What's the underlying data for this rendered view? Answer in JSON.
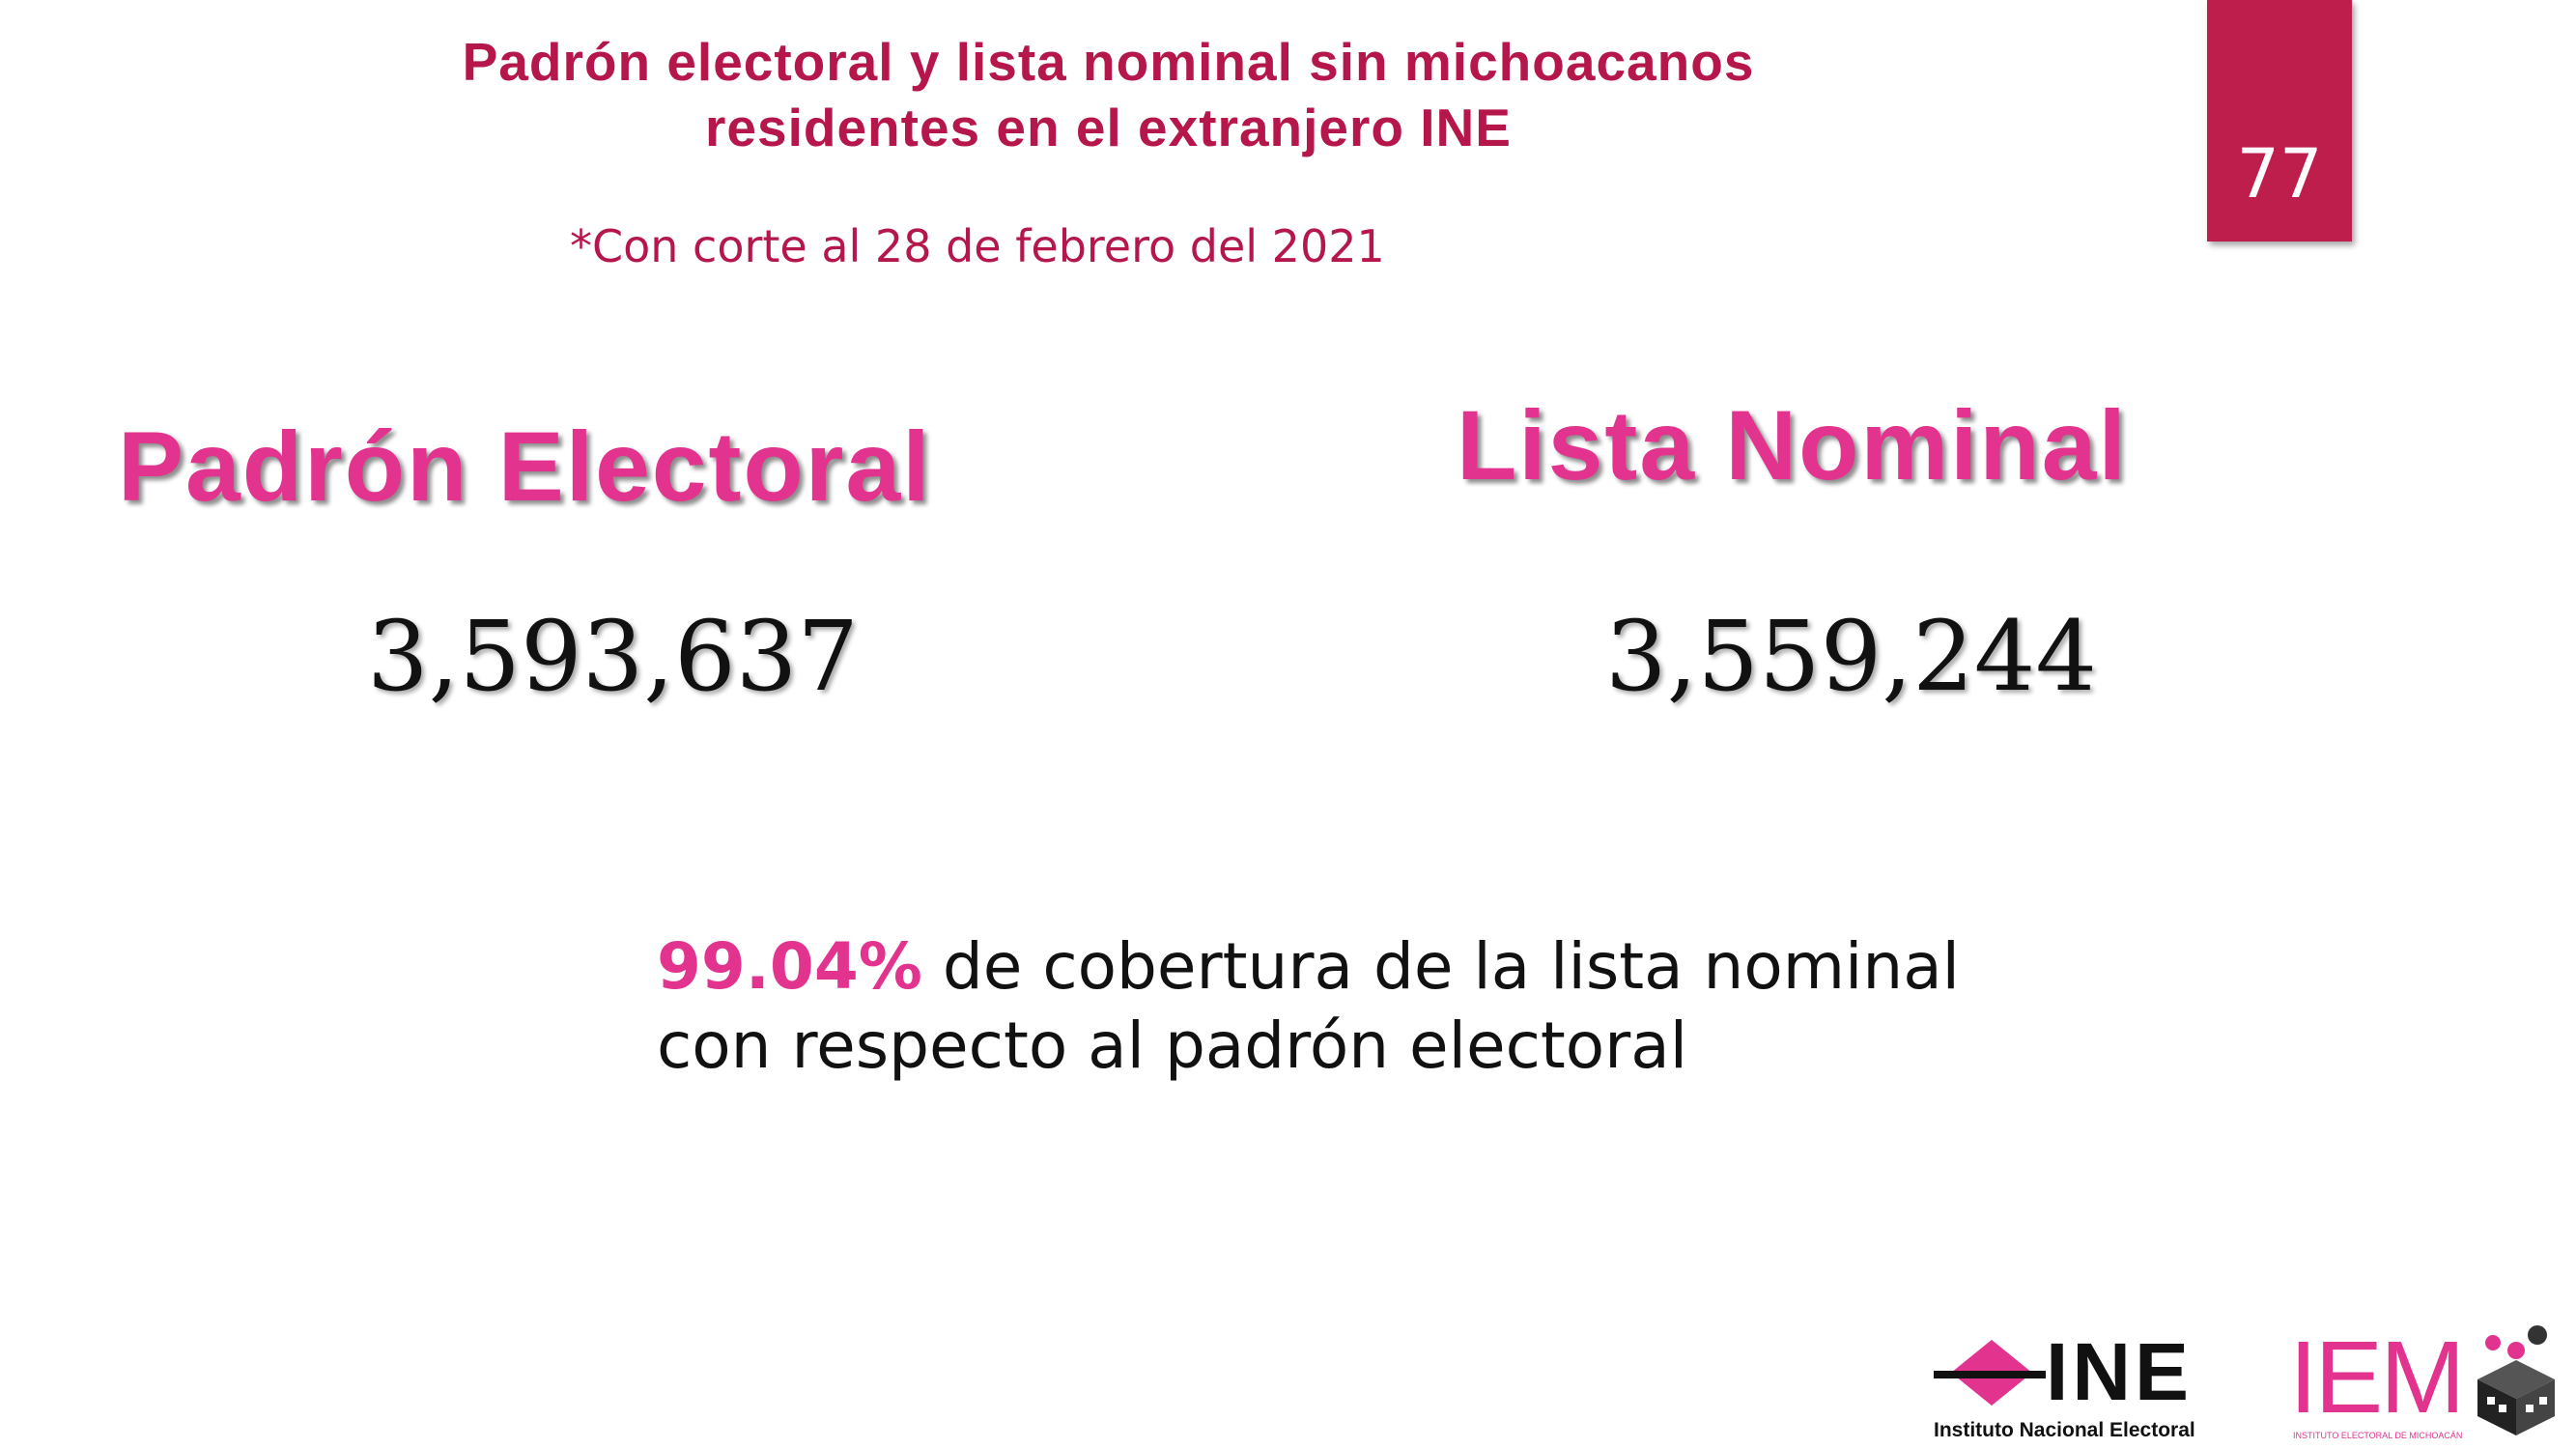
{
  "header": {
    "title_line1": "Padrón electoral y lista nominal sin michoacanos",
    "title_line2": "residentes en el extranjero INE",
    "cut_date": "*Con corte al 28 de febrero del 2021"
  },
  "page_number": "77",
  "stats": {
    "padron": {
      "label": "Padrón Electoral",
      "value": "3,593,637"
    },
    "lista": {
      "label": "Lista Nominal",
      "value": "3,559,244"
    }
  },
  "coverage": {
    "percent": "99.04%",
    "text_line1": "de cobertura de la lista nominal",
    "text_line2": "con respecto al padrón electoral"
  },
  "logos": {
    "ine_letters": "INE",
    "ine_caption": "Instituto Nacional Electoral",
    "iem_letters": "IEM",
    "iem_caption": "INSTITUTO ELECTORAL DE MICHOACÁN"
  },
  "colors": {
    "title": "#b5174b",
    "accent_pink": "#e2338f",
    "badge": "#be1e4c",
    "ine_mark": "#e2338f"
  }
}
